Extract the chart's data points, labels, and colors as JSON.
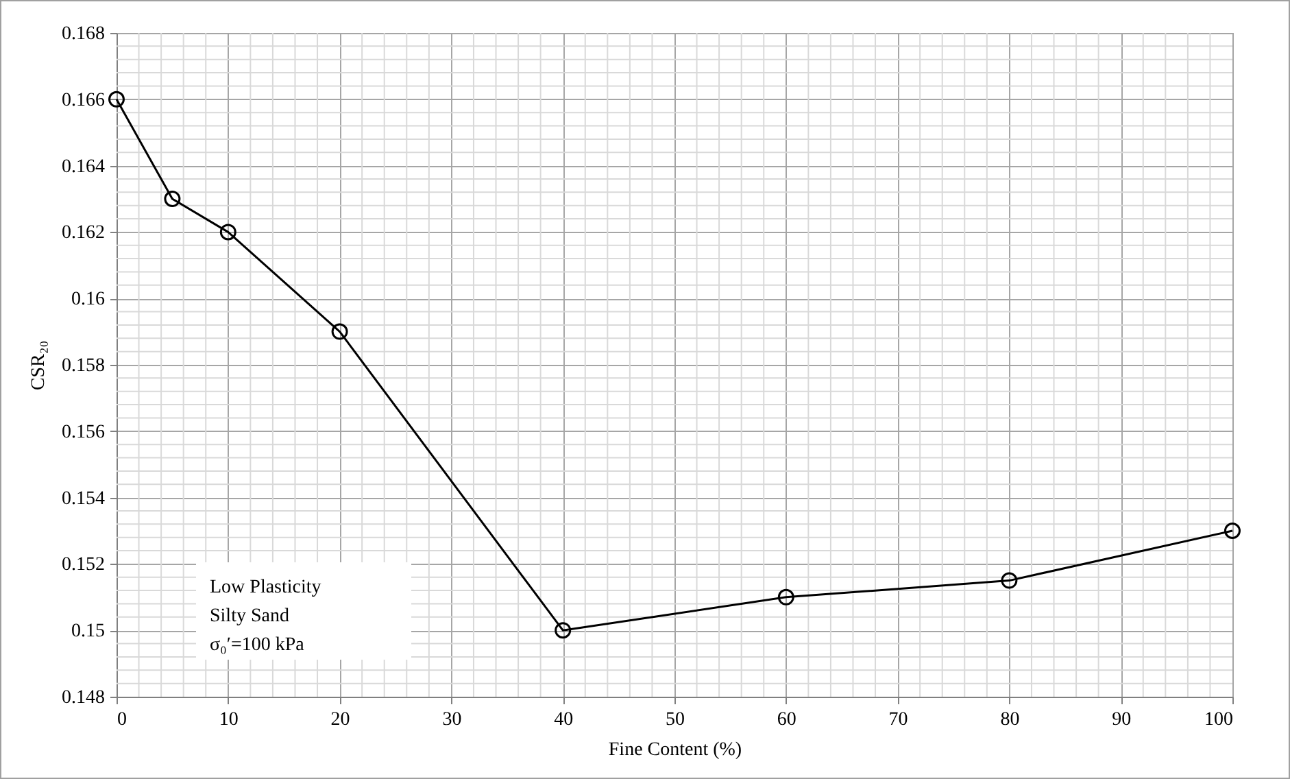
{
  "chart_data": {
    "type": "line",
    "xlabel": "Fine Content (%)",
    "ylabel": "CSR₂₀",
    "x": [
      0,
      5,
      10,
      20,
      40,
      60,
      80,
      100
    ],
    "series": [
      {
        "color": "#000000",
        "values": [
          0.166,
          0.163,
          0.162,
          0.159,
          0.15,
          0.151,
          0.1515,
          0.153
        ]
      }
    ],
    "xlim": [
      0,
      100
    ],
    "xticks": [
      0,
      10,
      20,
      30,
      40,
      50,
      60,
      70,
      80,
      90,
      100
    ],
    "ylim": [
      0.148,
      0.168
    ],
    "yticks": [
      {
        "value": 0.148,
        "label": "0.148"
      },
      {
        "value": 0.15,
        "label": "0.15"
      },
      {
        "value": 0.152,
        "label": "0.152"
      },
      {
        "value": 0.154,
        "label": "0.154"
      },
      {
        "value": 0.156,
        "label": "0.156"
      },
      {
        "value": 0.158,
        "label": "0.158"
      },
      {
        "value": 0.16,
        "label": "0.16"
      },
      {
        "value": 0.162,
        "label": "0.162"
      },
      {
        "value": 0.164,
        "label": "0.164"
      },
      {
        "value": 0.166,
        "label": "0.166"
      },
      {
        "value": 0.168,
        "label": "0.168"
      }
    ],
    "grid": true,
    "marker": "circle",
    "line_style": "solid",
    "annotations": [
      "Low Plasticity",
      "Silty Sand",
      "σ₀′=100 kPa"
    ]
  }
}
